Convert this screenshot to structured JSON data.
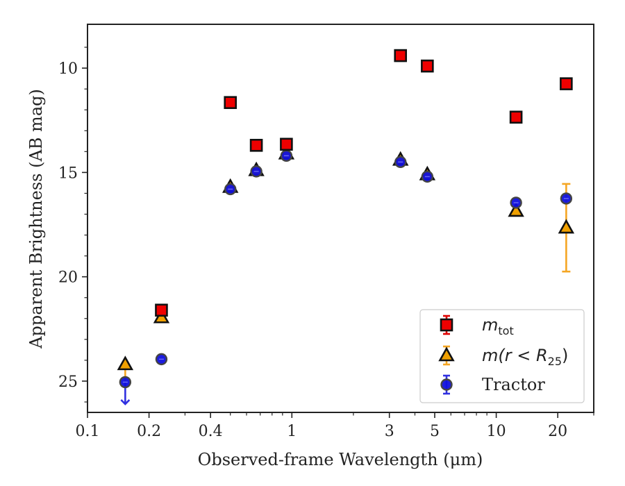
{
  "chart_data": {
    "type": "scatter",
    "title": "",
    "xlabel": "Observed-frame Wavelength (μm)",
    "ylabel": "Apparent Brightness (AB mag)",
    "xscale": "log",
    "xlim": [
      0.1,
      30
    ],
    "ylim": [
      26.5,
      7.9
    ],
    "y_inverted": true,
    "x_ticks": [
      {
        "value": 0.1,
        "label": "0.1"
      },
      {
        "value": 0.2,
        "label": "0.2"
      },
      {
        "value": 0.4,
        "label": "0.4"
      },
      {
        "value": 1,
        "label": "1"
      },
      {
        "value": 3,
        "label": "3"
      },
      {
        "value": 5,
        "label": "5"
      },
      {
        "value": 10,
        "label": "10"
      },
      {
        "value": 20,
        "label": "20"
      }
    ],
    "y_ticks": [
      {
        "value": 10,
        "label": "10"
      },
      {
        "value": 15,
        "label": "15"
      },
      {
        "value": 20,
        "label": "20"
      },
      {
        "value": 25,
        "label": "25"
      }
    ],
    "legend_placement": "lower-right",
    "series": [
      {
        "name": "m_tot",
        "legend_main": "m",
        "legend_sub": "tot",
        "marker": "square",
        "fill": "#ee0000",
        "edge": "#111111",
        "errcolor": "#dd0000",
        "points": [
          {
            "x": 0.23,
            "y": 21.6
          },
          {
            "x": 0.5,
            "y": 11.65
          },
          {
            "x": 0.67,
            "y": 13.7
          },
          {
            "x": 0.94,
            "y": 13.65
          },
          {
            "x": 3.4,
            "y": 9.4
          },
          {
            "x": 4.6,
            "y": 9.9
          },
          {
            "x": 12.5,
            "y": 12.35
          },
          {
            "x": 22,
            "y": 10.75
          }
        ]
      },
      {
        "name": "m(r<R25)",
        "legend_main": "m(r < R",
        "legend_sub": "25",
        "legend_end": ")",
        "marker": "triangle",
        "fill": "#f0a000",
        "edge": "#111111",
        "errcolor": "#f5a623",
        "points": [
          {
            "x": 0.153,
            "y": 24.2
          },
          {
            "x": 0.23,
            "y": 21.95
          },
          {
            "x": 0.5,
            "y": 15.7
          },
          {
            "x": 0.67,
            "y": 14.9
          },
          {
            "x": 0.94,
            "y": 14.1
          },
          {
            "x": 3.4,
            "y": 14.4
          },
          {
            "x": 4.6,
            "y": 15.1
          },
          {
            "x": 12.5,
            "y": 16.85
          },
          {
            "x": 22,
            "y": 17.65,
            "err_low": 19.75,
            "err_high": 15.55
          }
        ]
      },
      {
        "name": "Tractor",
        "legend_main": "Tractor",
        "marker": "circle",
        "fill": "#1010dd",
        "edge": "#444444",
        "errcolor": "#3030e0",
        "points": [
          {
            "x": 0.153,
            "y": 25.05,
            "upper_limit": true
          },
          {
            "x": 0.23,
            "y": 23.95
          },
          {
            "x": 0.5,
            "y": 15.8
          },
          {
            "x": 0.67,
            "y": 14.95
          },
          {
            "x": 0.94,
            "y": 14.2
          },
          {
            "x": 3.4,
            "y": 14.5
          },
          {
            "x": 4.6,
            "y": 15.2
          },
          {
            "x": 12.5,
            "y": 16.45
          },
          {
            "x": 22,
            "y": 16.25
          }
        ]
      }
    ]
  }
}
